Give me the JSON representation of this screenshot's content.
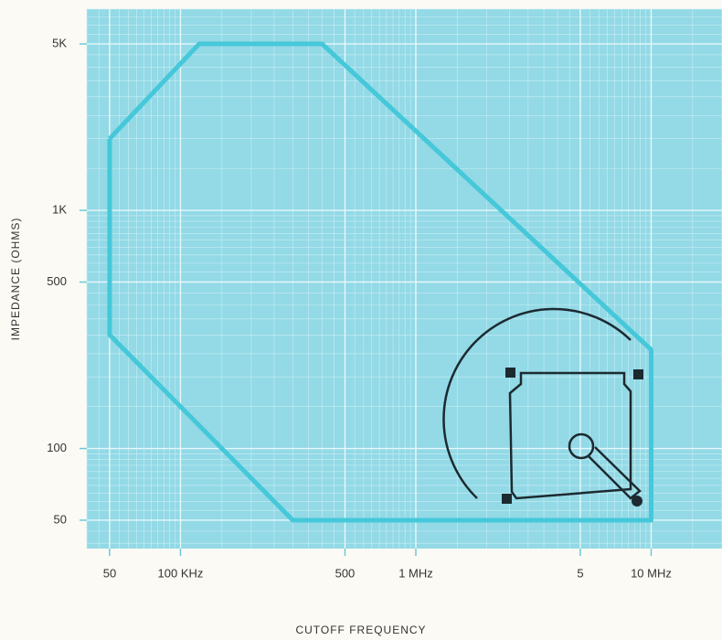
{
  "chart_data": {
    "type": "line",
    "x_label": "CUTOFF FREQUENCY",
    "y_label": "IMPEDANCE (OHMS)",
    "xlim": [
      40000,
      20000000
    ],
    "ylim": [
      38,
      7000
    ],
    "log_x": true,
    "log_y": true,
    "grid": true,
    "xticks": [
      {
        "value": 50000,
        "label": "50"
      },
      {
        "value": 100000,
        "label": "100 KHz"
      },
      {
        "value": 500000,
        "label": "500"
      },
      {
        "value": 1000000,
        "label": "1 MHz"
      },
      {
        "value": 5000000,
        "label": "5"
      },
      {
        "value": 10000000,
        "label": "10 MHz"
      }
    ],
    "yticks": [
      {
        "value": 5000,
        "label": "5K"
      },
      {
        "value": 1000,
        "label": "1K"
      },
      500,
      100,
      50
    ],
    "series": [
      {
        "color": "#45c8d9",
        "x": [
          50000,
          120000,
          400000,
          10000000,
          10000000,
          300000,
          50000,
          50000
        ],
        "values": [
          2000,
          5000,
          5000,
          260,
          50,
          50,
          300,
          2000
        ]
      }
    ]
  }
}
